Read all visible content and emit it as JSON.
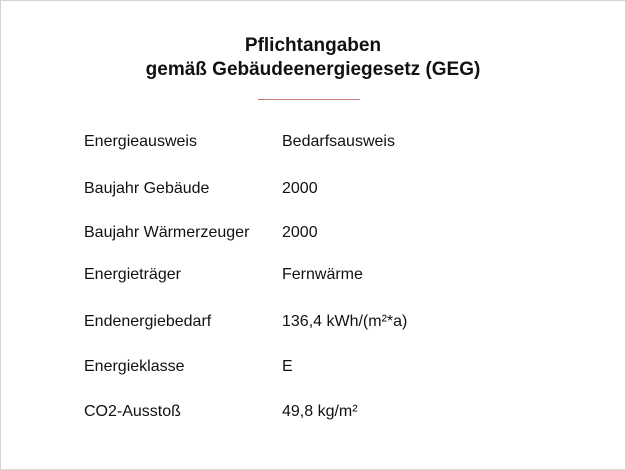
{
  "title_line1": "Pflichtangaben",
  "title_line2": "gemäß Gebäudeenergiegesetz (GEG)",
  "rows": [
    {
      "label": "Energieausweis",
      "value": "Bedarfsausweis"
    },
    {
      "label": "Baujahr Gebäude",
      "value": "2000"
    },
    {
      "label": "Baujahr Wärmerzeuger",
      "value": "2000"
    },
    {
      "label": "Energieträger",
      "value": "Fernwärme"
    },
    {
      "label": "Endenergiebedarf",
      "value": "136,4 kWh/(m²*a)"
    },
    {
      "label": "Energieklasse",
      "value": "E"
    },
    {
      "label": "CO2-Ausstoß",
      "value": "49,8 kg/m²"
    }
  ]
}
